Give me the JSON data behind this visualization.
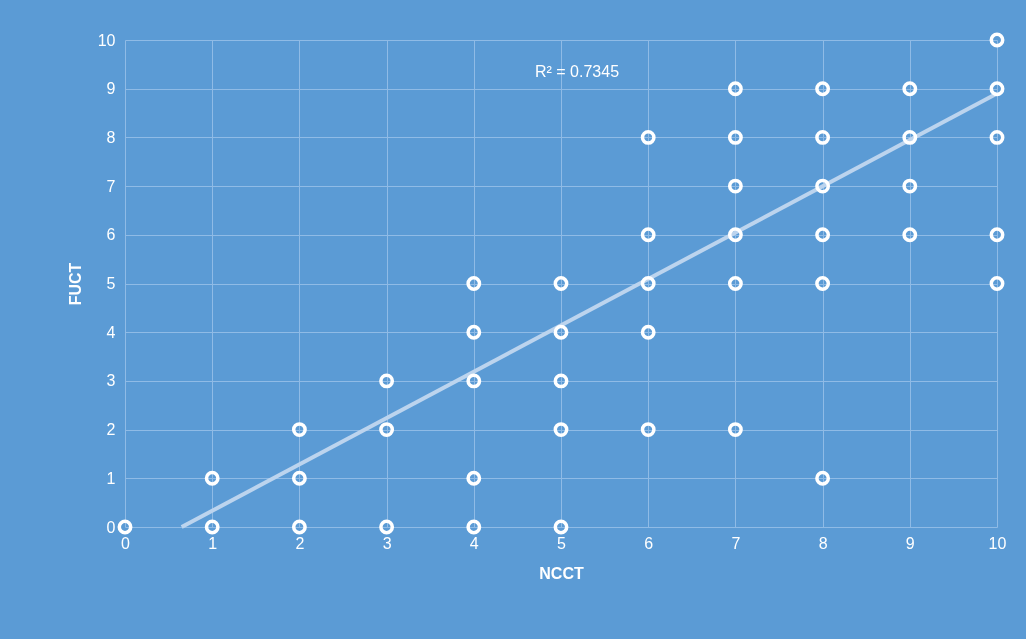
{
  "chart_data": {
    "type": "scatter",
    "xlabel": "NCCT",
    "ylabel": "FUCT",
    "xlim": [
      0,
      10
    ],
    "ylim": [
      0,
      10
    ],
    "xticks": [
      0,
      1,
      2,
      3,
      4,
      5,
      6,
      7,
      8,
      9,
      10
    ],
    "yticks": [
      0,
      1,
      2,
      3,
      4,
      5,
      6,
      7,
      8,
      9,
      10
    ],
    "grid": true,
    "annotations": [
      "R² = 0.7345"
    ],
    "series": [
      {
        "color": "#ffffff",
        "marker": "circle",
        "x": [
          0,
          1,
          1,
          2,
          2,
          2,
          3,
          3,
          3,
          4,
          4,
          4,
          4,
          4,
          5,
          5,
          5,
          5,
          5,
          6,
          6,
          6,
          6,
          6,
          7,
          7,
          7,
          7,
          7,
          7,
          8,
          8,
          8,
          8,
          8,
          8,
          9,
          9,
          9,
          9,
          10,
          10,
          10,
          10,
          10
        ],
        "values": [
          0,
          0,
          1,
          0,
          1,
          2,
          0,
          2,
          3,
          0,
          1,
          3,
          4,
          5,
          0,
          2,
          3,
          4,
          5,
          2,
          4,
          5,
          6,
          8,
          2,
          5,
          6,
          7,
          8,
          9,
          1,
          5,
          6,
          7,
          8,
          9,
          6,
          7,
          8,
          9,
          5,
          6,
          8,
          9,
          10
        ]
      },
      {
        "type": "line",
        "color": "#bcd4ee",
        "x": [
          0.65,
          10
        ],
        "values": [
          0,
          8.9
        ]
      }
    ]
  }
}
